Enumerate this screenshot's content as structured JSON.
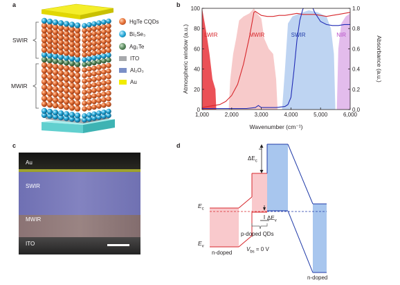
{
  "panels": {
    "a": {
      "letter": "a",
      "legend": [
        {
          "name": "hgte",
          "text": "HgTe CQDs",
          "color": "#e8743b"
        },
        {
          "name": "bi2se3",
          "text": "Bi₂Se₃",
          "color": "#27a9d8"
        },
        {
          "name": "ag2te",
          "text": "Ag₂Te",
          "color": "#5a8a5e"
        },
        {
          "name": "ito",
          "text": "ITO",
          "color": "#a7a9ac"
        },
        {
          "name": "al2o3",
          "text": "Al₂O₃",
          "color": "#7b8fc7"
        },
        {
          "name": "au",
          "text": "Au",
          "color": "#f2ec00"
        }
      ],
      "brackets": {
        "top": "SWIR",
        "bottom": "MWIR"
      }
    },
    "b": {
      "letter": "b"
    },
    "c": {
      "letter": "c",
      "layers": [
        {
          "text": "Au",
          "color": "#2a2a22"
        },
        {
          "text": "SWIR",
          "color": "#7b7bb8"
        },
        {
          "text": "MWIR",
          "color": "#8a7574"
        },
        {
          "text": "ITO",
          "color": "#2f2f2f"
        }
      ]
    },
    "d": {
      "letter": "d",
      "labels": {
        "ec": "E",
        "ec_sub": "c",
        "ev": "E",
        "ev_sub": "v",
        "dec": "ΔE",
        "dec_sub": "c",
        "dev": "ΔE",
        "dev_sub": "v",
        "ndoped_left": "n-doped",
        "pdoped": "p-doped QDs",
        "vbs": "V",
        "vbs_sub": "bs",
        "vbs_rest": " = 0 V",
        "ndoped_right": "n-doped"
      }
    }
  },
  "chart_data": {
    "type": "area",
    "xlabel": "Wavenumber (cm⁻¹)",
    "ylabel_left": "Atmospheric window (a.u.)",
    "ylabel_right": "Absorbance (a.u.)",
    "xlim": [
      1000,
      6000
    ],
    "ylim_left": [
      0,
      100
    ],
    "ylim_right": [
      0,
      1.0
    ],
    "x_ticks": [
      "1,000",
      "2,000",
      "3,000",
      "4,000",
      "5,000",
      "6,000"
    ],
    "y_left_ticks": [
      "0",
      "20",
      "40",
      "60",
      "80",
      "100"
    ],
    "y_right_ticks": [
      "0.0",
      "0.2",
      "0.4",
      "0.6",
      "0.8",
      "1.0"
    ],
    "bands": [
      {
        "name": "LWIR",
        "color": "#e8333a",
        "label_color": "#d7262b"
      },
      {
        "name": "MWIR",
        "color": "#f4b8b8",
        "label_color": "#d7262b"
      },
      {
        "name": "SWIR",
        "color": "#a8c6ee",
        "label_color": "#1f3aa8"
      },
      {
        "name": "NIR",
        "color": "#d9a6e6",
        "label_color": "#b84fc9"
      }
    ],
    "series": [
      {
        "color": "#d7262b",
        "x": [
          1000,
          1200,
          1400,
          1600,
          1800,
          2000,
          2200,
          2400,
          2600,
          2700,
          2750,
          2800,
          2900,
          3000,
          3200,
          3400,
          3600,
          3800,
          4000,
          4200,
          4400,
          4600,
          4800,
          5000,
          5200,
          5400,
          5600,
          5800,
          6000
        ],
        "y": [
          0.02,
          0.03,
          0.04,
          0.05,
          0.08,
          0.14,
          0.25,
          0.45,
          0.72,
          0.88,
          0.96,
          0.97,
          0.95,
          0.93,
          0.92,
          0.92,
          0.93,
          0.93,
          0.94,
          0.95,
          0.94,
          0.94,
          0.94,
          0.93,
          0.92,
          0.93,
          0.94,
          0.95,
          0.96
        ]
      },
      {
        "color": "#1f2ab5",
        "x": [
          1000,
          1500,
          2000,
          2500,
          2800,
          2900,
          3000,
          3500,
          3800,
          3900,
          4000,
          4100,
          4200,
          4300,
          4400,
          4500,
          4600,
          4700,
          4800,
          5000,
          5200,
          5400,
          5600,
          5800,
          6000
        ],
        "y": [
          0.01,
          0.01,
          0.01,
          0.01,
          0.02,
          0.04,
          0.02,
          0.02,
          0.03,
          0.05,
          0.12,
          0.38,
          0.68,
          0.88,
          0.99,
          1.04,
          1.06,
          1.03,
          0.96,
          0.87,
          0.84,
          0.83,
          0.83,
          0.84,
          0.84
        ]
      }
    ]
  }
}
